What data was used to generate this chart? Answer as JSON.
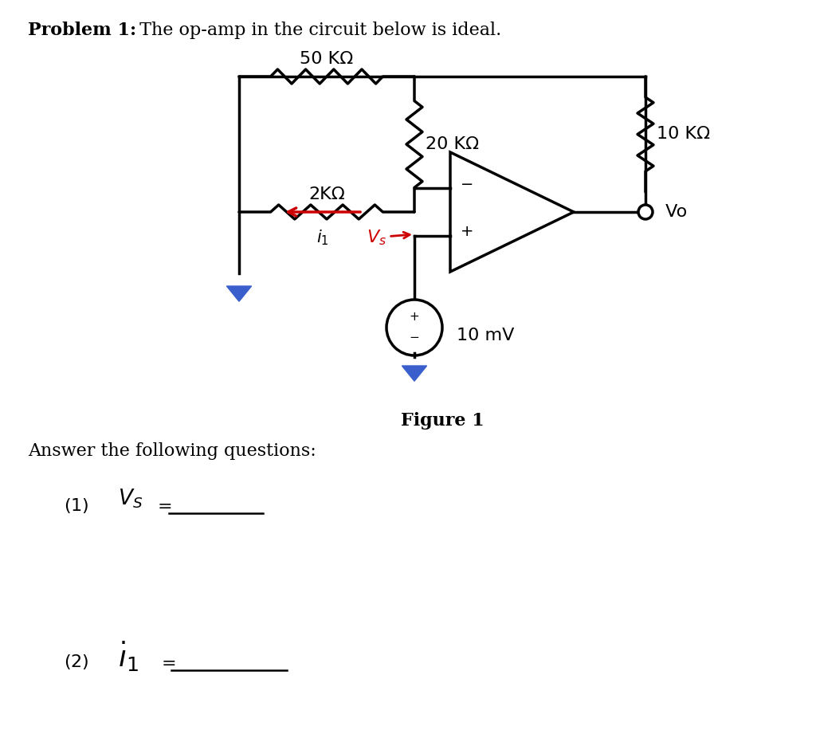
{
  "title_bold": "Problem 1:",
  "title_normal": " The op-amp in the circuit below is ideal.",
  "figure_label": "Figure 1",
  "answer_text": "Answer the following questions:",
  "r1_label": "50 KΩ",
  "r2_label": "2KΩ",
  "r3_label": "20 KΩ",
  "r4_label": "10 KΩ",
  "vs_value": "10 mV",
  "vo_label": " Vo",
  "bg_color": "#ffffff",
  "line_color": "#000000",
  "red_color": "#cc0000",
  "blue_color": "#3a5fcd",
  "lw": 2.5
}
